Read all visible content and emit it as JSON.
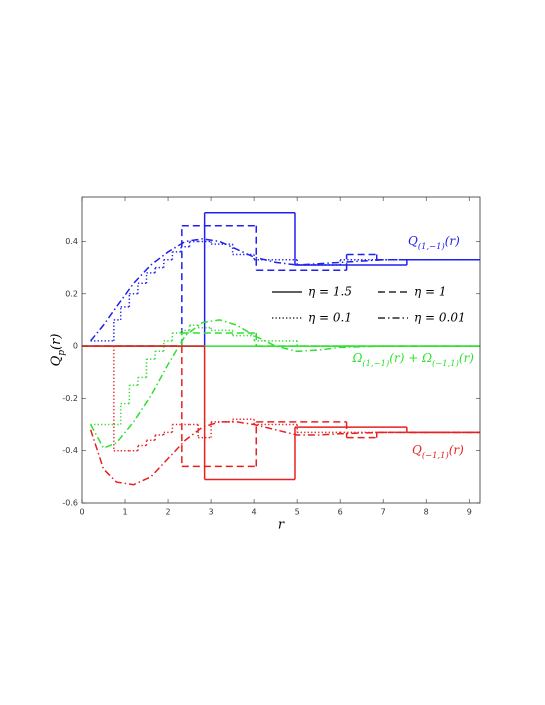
{
  "chart_data": {
    "type": "line",
    "x_label": "r",
    "y_label": [
      {
        "t": "Q"
      },
      {
        "t": "p",
        "sub": true
      },
      {
        "t": "(r)"
      }
    ],
    "xlim": [
      0,
      9.25
    ],
    "ylim": [
      -0.6,
      0.57
    ],
    "xticks": [
      0,
      1,
      2,
      3,
      4,
      5,
      6,
      7,
      8,
      9
    ],
    "yticks": [
      -0.6,
      -0.4,
      -0.2,
      0,
      0.2,
      0.4
    ],
    "legend": [
      {
        "label": "η = 1.5",
        "dash": "solid"
      },
      {
        "label": "η = 1",
        "dash": "dashed"
      },
      {
        "label": "η = 0.1",
        "dash": "dotted"
      },
      {
        "label": "η = 0.01",
        "dash": "dashdot"
      }
    ],
    "groups": [
      {
        "label": [
          {
            "t": "Q"
          },
          {
            "t": "(1,−1)",
            "sub": true
          },
          {
            "t": "(r)"
          }
        ],
        "color": "#2020f0",
        "curves": [
          {
            "dash": "solid",
            "step": true,
            "x": [
              0,
              2.85,
              4.95,
              7.55,
              9.25
            ],
            "values": [
              0,
              0.51,
              0.31,
              0.33,
              0.33
            ]
          },
          {
            "dash": "dashed",
            "step": true,
            "x": [
              0,
              2.32,
              4.05,
              6.15,
              6.85,
              9.25
            ],
            "values": [
              0,
              0.46,
              0.29,
              0.35,
              0.33,
              0.33
            ]
          },
          {
            "dash": "dotted",
            "step": true,
            "x": [
              0.2,
              0.74,
              0.9,
              1.1,
              1.3,
              1.5,
              1.7,
              1.9,
              2.1,
              2.3,
              2.5,
              2.7,
              3.0,
              3.5,
              4.0,
              5.0,
              6.0,
              9.25
            ],
            "values": [
              0.02,
              0.1,
              0.15,
              0.2,
              0.24,
              0.28,
              0.3,
              0.33,
              0.36,
              0.38,
              0.4,
              0.4,
              0.39,
              0.35,
              0.33,
              0.31,
              0.33,
              0.33
            ]
          },
          {
            "dash": "dashdot",
            "step": false,
            "x": [
              0.2,
              0.5,
              0.8,
              1.2,
              1.6,
              2.0,
              2.4,
              2.8,
              3.2,
              3.6,
              4.0,
              4.5,
              5.0,
              5.5,
              6.0,
              7.0,
              8.0,
              9.25
            ],
            "values": [
              0.02,
              0.08,
              0.15,
              0.24,
              0.31,
              0.36,
              0.4,
              0.41,
              0.4,
              0.37,
              0.34,
              0.32,
              0.31,
              0.315,
              0.32,
              0.33,
              0.33,
              0.33
            ]
          }
        ]
      },
      {
        "label": [
          {
            "t": "Ω"
          },
          {
            "t": "(1,−1)",
            "sub": true
          },
          {
            "t": "(r) + Ω"
          },
          {
            "t": "(−1,1)",
            "sub": true
          },
          {
            "t": "(r)"
          }
        ],
        "color": "#30e030",
        "curves": [
          {
            "dash": "solid",
            "step": true,
            "x": [
              0,
              2.85,
              4.95,
              7.55,
              9.25
            ],
            "values": [
              0,
              0,
              0,
              0,
              0
            ]
          },
          {
            "dash": "dashed",
            "step": true,
            "x": [
              0,
              2.32,
              4.05,
              6.15,
              6.85,
              9.25
            ],
            "values": [
              0,
              0.05,
              0,
              0,
              0,
              0
            ]
          },
          {
            "dash": "dotted",
            "step": true,
            "x": [
              0.2,
              0.74,
              0.9,
              1.1,
              1.3,
              1.5,
              1.7,
              1.9,
              2.1,
              2.3,
              2.5,
              2.7,
              3.0,
              3.5,
              4.0,
              5.0,
              6.0,
              9.25
            ],
            "values": [
              -0.3,
              -0.3,
              -0.22,
              -0.15,
              -0.12,
              -0.05,
              -0.02,
              0.02,
              0.05,
              0.06,
              0.08,
              0.07,
              0.06,
              0.04,
              0.02,
              0,
              0,
              0
            ]
          },
          {
            "dash": "dashdot",
            "step": false,
            "x": [
              0.2,
              0.5,
              0.8,
              1.2,
              1.6,
              2.0,
              2.4,
              2.8,
              3.2,
              3.6,
              4.0,
              4.5,
              5.0,
              5.5,
              6.0,
              7.0,
              8.0,
              9.25
            ],
            "values": [
              -0.3,
              -0.39,
              -0.37,
              -0.29,
              -0.19,
              -0.07,
              0.04,
              0.09,
              0.1,
              0.08,
              0.04,
              0,
              -0.02,
              -0.015,
              -0.005,
              0,
              0,
              0
            ]
          }
        ]
      },
      {
        "label": [
          {
            "t": "Q"
          },
          {
            "t": "(−1,1)",
            "sub": true
          },
          {
            "t": "(r)"
          }
        ],
        "color": "#e82020",
        "curves": [
          {
            "dash": "solid",
            "step": true,
            "x": [
              0,
              2.85,
              4.95,
              7.55,
              9.25
            ],
            "values": [
              0,
              -0.51,
              -0.31,
              -0.33,
              -0.33
            ]
          },
          {
            "dash": "dashed",
            "step": true,
            "x": [
              0,
              2.32,
              4.05,
              6.15,
              6.85,
              9.25
            ],
            "values": [
              0,
              -0.46,
              -0.29,
              -0.35,
              -0.33,
              -0.33
            ]
          },
          {
            "dash": "dotted",
            "step": true,
            "x": [
              0.2,
              0.74,
              0.9,
              1.1,
              1.3,
              1.5,
              1.7,
              1.9,
              2.1,
              2.3,
              2.5,
              2.7,
              3.0,
              3.5,
              4.0,
              5.0,
              6.0,
              9.25
            ],
            "values": [
              0,
              -0.4,
              -0.4,
              -0.4,
              -0.38,
              -0.36,
              -0.34,
              -0.33,
              -0.3,
              -0.3,
              -0.3,
              -0.35,
              -0.29,
              -0.28,
              -0.3,
              -0.33,
              -0.33,
              -0.33
            ]
          },
          {
            "dash": "dashdot",
            "step": false,
            "x": [
              0.2,
              0.5,
              0.8,
              1.2,
              1.6,
              2.0,
              2.4,
              2.8,
              3.2,
              3.6,
              4.0,
              4.5,
              5.0,
              5.5,
              6.0,
              7.0,
              8.0,
              9.25
            ],
            "values": [
              -0.32,
              -0.47,
              -0.52,
              -0.53,
              -0.5,
              -0.43,
              -0.36,
              -0.31,
              -0.29,
              -0.29,
              -0.3,
              -0.32,
              -0.34,
              -0.34,
              -0.335,
              -0.33,
              -0.33,
              -0.33
            ]
          }
        ]
      }
    ]
  }
}
